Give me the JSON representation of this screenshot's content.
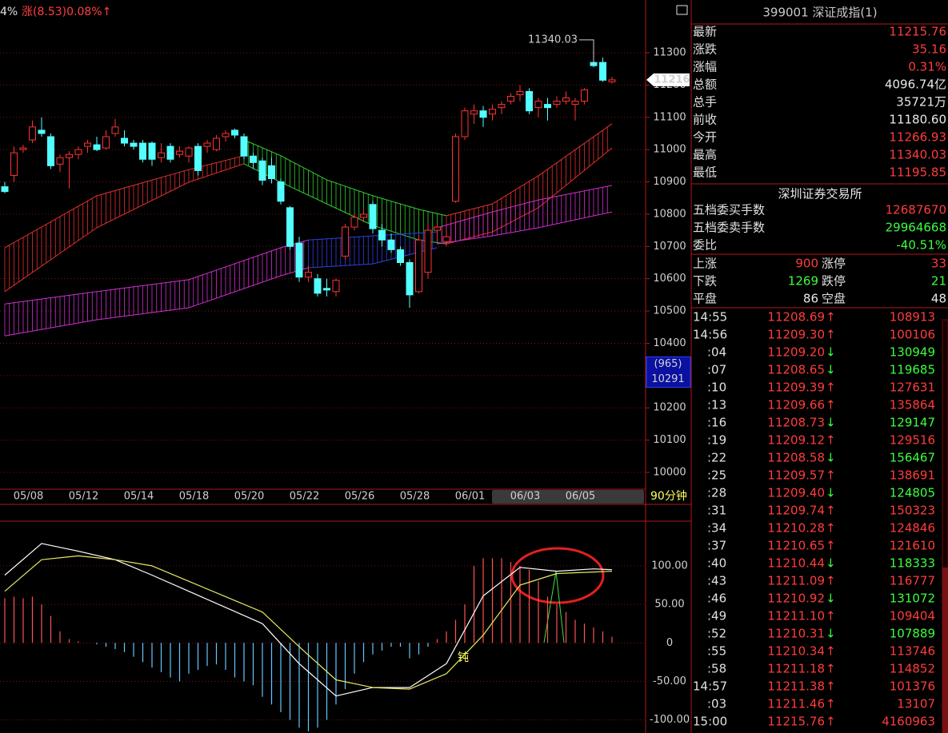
{
  "header": {
    "pct_fragment": "4%",
    "change_info": "涨(8.53)0.08%↑"
  },
  "kline": {
    "type": "candlestick",
    "ylim": [
      9948,
      11451
    ],
    "yticks": [
      10000,
      10100,
      10200,
      10300,
      10400,
      10500,
      10600,
      10700,
      10800,
      10900,
      11000,
      11100,
      11200,
      11300
    ],
    "grid": true,
    "up_color": "#ff3232",
    "down_color": "#54ffff",
    "categories": [
      null,
      null,
      null,
      "05/08",
      null,
      null,
      null,
      null,
      null,
      "05/12",
      null,
      null,
      null,
      null,
      null,
      "05/14",
      null,
      null,
      null,
      null,
      null,
      "05/18",
      null,
      null,
      null,
      null,
      null,
      "05/20",
      null,
      null,
      null,
      null,
      null,
      "05/22",
      null,
      null,
      null,
      null,
      null,
      "05/26",
      null,
      null,
      null,
      null,
      null,
      "05/28",
      null,
      null,
      null,
      null,
      null,
      "06/01",
      null,
      null,
      null,
      null,
      null,
      "06/03",
      null,
      null,
      null,
      null,
      null,
      "06/05",
      null,
      null,
      null
    ],
    "candles": [
      [
        10885,
        10900,
        10865,
        10870
      ],
      [
        10920,
        11010,
        10900,
        10990
      ],
      [
        11000,
        11015,
        10990,
        11005
      ],
      [
        11030,
        11090,
        11020,
        11070
      ],
      [
        11060,
        11100,
        11040,
        11050
      ],
      [
        11040,
        11050,
        10940,
        10950
      ],
      [
        10955,
        10985,
        10930,
        10975
      ],
      [
        10975,
        10995,
        10880,
        10985
      ],
      [
        10985,
        11010,
        10970,
        11000
      ],
      [
        11010,
        11030,
        10990,
        11020
      ],
      [
        11015,
        11040,
        10995,
        11000
      ],
      [
        11005,
        11060,
        11000,
        11040
      ],
      [
        11050,
        11095,
        11040,
        11070
      ],
      [
        11035,
        11060,
        11010,
        11020
      ],
      [
        11020,
        11030,
        11000,
        11010
      ],
      [
        11020,
        11030,
        10960,
        10970
      ],
      [
        11020,
        11025,
        10950,
        10970
      ],
      [
        10975,
        11020,
        10960,
        10990
      ],
      [
        11010,
        11020,
        10960,
        10970
      ],
      [
        10985,
        11010,
        10975,
        10995
      ],
      [
        10980,
        11010,
        10960,
        11005
      ],
      [
        11010,
        11020,
        10920,
        10935
      ],
      [
        11010,
        11030,
        10990,
        11020
      ],
      [
        11000,
        11045,
        10995,
        11035
      ],
      [
        11040,
        11060,
        11025,
        11050
      ],
      [
        11060,
        11065,
        11035,
        11045
      ],
      [
        11040,
        11050,
        10970,
        10980
      ],
      [
        10980,
        10990,
        10940,
        10960
      ],
      [
        10965,
        10975,
        10890,
        10905
      ],
      [
        10950,
        10975,
        10895,
        10910
      ],
      [
        10900,
        10910,
        10830,
        10840
      ],
      [
        10820,
        10825,
        10690,
        10700
      ],
      [
        10710,
        10730,
        10590,
        10605
      ],
      [
        10605,
        10640,
        10590,
        10620
      ],
      [
        10600,
        10615,
        10545,
        10555
      ],
      [
        10570,
        10600,
        10545,
        10565
      ],
      [
        10560,
        10600,
        10545,
        10595
      ],
      [
        10670,
        10770,
        10660,
        10760
      ],
      [
        10760,
        10800,
        10750,
        10790
      ],
      [
        10790,
        10815,
        10775,
        10800
      ],
      [
        10830,
        10840,
        10740,
        10755
      ],
      [
        10750,
        10770,
        10700,
        10720
      ],
      [
        10720,
        10740,
        10680,
        10690
      ],
      [
        10690,
        10700,
        10640,
        10650
      ],
      [
        10650,
        10660,
        10510,
        10550
      ],
      [
        10560,
        10735,
        10555,
        10720
      ],
      [
        10620,
        10770,
        10600,
        10750
      ],
      [
        10750,
        10770,
        10720,
        10760
      ],
      [
        10715,
        10750,
        10700,
        10730
      ],
      [
        10840,
        11050,
        10835,
        11040
      ],
      [
        11040,
        11130,
        11030,
        11120
      ],
      [
        11110,
        11140,
        11080,
        11120
      ],
      [
        11120,
        11135,
        11070,
        11100
      ],
      [
        11110,
        11140,
        11090,
        11125
      ],
      [
        11130,
        11150,
        11110,
        11140
      ],
      [
        11150,
        11175,
        11140,
        11165
      ],
      [
        11170,
        11200,
        11150,
        11180
      ],
      [
        11180,
        11190,
        11110,
        11120
      ],
      [
        11130,
        11160,
        11100,
        11150
      ],
      [
        11140,
        11160,
        11090,
        11130
      ],
      [
        11140,
        11165,
        11130,
        11150
      ],
      [
        11150,
        11180,
        11140,
        11160
      ],
      [
        11140,
        11160,
        11090,
        11150
      ],
      [
        11150,
        11190,
        11140,
        11185
      ],
      [
        11270,
        11340.03,
        11255,
        11260
      ],
      [
        11270,
        11285,
        11210,
        11215
      ],
      [
        11210,
        11225,
        11205,
        11216
      ]
    ],
    "bands": [
      {
        "color": "#e03030",
        "x": [
          0,
          10,
          20,
          26
        ],
        "upper": [
          10696,
          10857,
          10938,
          10981
        ],
        "lower": [
          10560,
          10758,
          10899,
          10956
        ]
      },
      {
        "color": "#30d030",
        "x": [
          26,
          30,
          35,
          40,
          45,
          48
        ],
        "upper": [
          11030,
          10981,
          10906,
          10857,
          10815,
          10795
        ],
        "lower": [
          10956,
          10899,
          10832,
          10765,
          10720,
          10708
        ]
      },
      {
        "color": "#e03030",
        "x": [
          48,
          53,
          58,
          66
        ],
        "upper": [
          10795,
          10832,
          10919,
          11080
        ],
        "lower": [
          10708,
          10745,
          10820,
          11005
        ]
      },
      {
        "color": "#d030d0",
        "x": [
          0,
          10,
          20,
          30,
          33
        ],
        "upper": [
          10522,
          10560,
          10597,
          10696,
          10720
        ],
        "lower": [
          10423,
          10473,
          10510,
          10609,
          10634
        ]
      },
      {
        "color": "#3040e0",
        "x": [
          33,
          40,
          47
        ],
        "upper": [
          10720,
          10733,
          10745
        ],
        "lower": [
          10634,
          10646,
          10696
        ]
      },
      {
        "color": "#d030d0",
        "x": [
          47,
          53,
          58,
          66
        ],
        "upper": [
          10758,
          10807,
          10844,
          10889
        ],
        "lower": [
          10708,
          10733,
          10758,
          10807
        ]
      }
    ],
    "high_label": 11340.03,
    "last_price_tag": 11216,
    "cursor_box": {
      "count": "(965)",
      "price": 10291
    },
    "period": "90分钟"
  },
  "macd": {
    "type": "macd",
    "ylim": [
      -117,
      158
    ],
    "yticks": [
      {
        "value": 100,
        "label": "100.00"
      },
      {
        "value": 50,
        "label": "50.00"
      },
      0,
      {
        "value": -50,
        "label": "-50.00"
      },
      {
        "value": -100,
        "label": "-100.00"
      }
    ],
    "up_color": "#ff5050",
    "down_color": "#60c8ff",
    "histogram": [
      58,
      60,
      58,
      60,
      50,
      35,
      15,
      5,
      2,
      0,
      -2,
      -5,
      -8,
      -12,
      -18,
      -25,
      -32,
      -38,
      -45,
      -50,
      -40,
      -35,
      -30,
      -28,
      -35,
      -45,
      -50,
      -55,
      -70,
      -80,
      -90,
      -100,
      -110,
      -115,
      -110,
      -100,
      -80,
      -60,
      -40,
      -25,
      -15,
      -10,
      -5,
      -5,
      -20,
      -15,
      -5,
      5,
      15,
      30,
      50,
      100,
      110,
      110,
      110,
      105,
      100,
      95,
      80,
      60,
      50,
      40,
      30,
      25,
      20,
      15,
      8
    ],
    "dif": {
      "color": "#ffffff",
      "x": [
        0,
        4,
        8,
        12,
        16,
        20,
        24,
        28,
        32,
        36,
        40,
        44,
        48,
        52,
        56,
        60,
        64,
        66
      ],
      "values": [
        88,
        129,
        119,
        108,
        88,
        67,
        46,
        25,
        -27,
        -69,
        -58,
        -58,
        -27,
        61,
        98,
        93,
        96,
        95
      ]
    },
    "dea": {
      "color": "#e8e860",
      "x": [
        0,
        4,
        8,
        12,
        16,
        20,
        24,
        28,
        32,
        36,
        40,
        44,
        48,
        52,
        56,
        60,
        64,
        66
      ],
      "values": [
        67,
        108,
        113,
        108,
        100,
        80,
        60,
        40,
        -5,
        -48,
        -58,
        -60,
        -40,
        10,
        75,
        90,
        92,
        93
      ]
    },
    "annotation": "钝"
  },
  "panel": {
    "title": "399001 深证成指(1)",
    "quote": [
      [
        "最新",
        "11215.76",
        "#ff3c3c"
      ],
      [
        "涨跌",
        "35.16",
        "#ff3c3c"
      ],
      [
        "涨幅",
        "0.31%",
        "#ff3c3c"
      ],
      [
        "总额",
        "4096.74亿",
        "#e8e8e8"
      ],
      [
        "总手",
        "35721万",
        "#e8e8e8"
      ],
      [
        "前收",
        "11180.60",
        "#e8e8e8"
      ],
      [
        "今开",
        "11266.93",
        "#ff3c3c"
      ],
      [
        "最高",
        "11340.03",
        "#ff3c3c"
      ],
      [
        "最低",
        "11195.85",
        "#ff3c3c"
      ]
    ],
    "exchange": "深圳证券交易所",
    "orders": [
      [
        "五档委买手数",
        "12687670",
        "#ff3c3c"
      ],
      [
        "五档委卖手数",
        "29964668",
        "#3cff3c"
      ],
      [
        "委比",
        "-40.51%",
        "#3cff3c"
      ]
    ],
    "breadth": [
      [
        "上涨",
        "900",
        "涨停",
        "33",
        "#ff3c3c"
      ],
      [
        "下跌",
        "1269",
        "跌停",
        "21",
        "#3cff3c"
      ],
      [
        "平盘",
        "86",
        "空盘",
        "48",
        "#e8e8e8"
      ]
    ],
    "ticks": [
      [
        "14:55",
        "11208.69",
        "↑",
        "108913",
        "#ff3c3c"
      ],
      [
        "14:56",
        "11209.30",
        "↑",
        "100106",
        "#ff3c3c"
      ],
      [
        ":04",
        "11209.20",
        "↓",
        "130949",
        "#3cff3c"
      ],
      [
        ":07",
        "11208.65",
        "↓",
        "119685",
        "#3cff3c"
      ],
      [
        ":10",
        "11209.39",
        "↑",
        "127631",
        "#ff3c3c"
      ],
      [
        ":13",
        "11209.66",
        "↑",
        "135864",
        "#ff3c3c"
      ],
      [
        ":16",
        "11208.73",
        "↓",
        "129147",
        "#3cff3c"
      ],
      [
        ":19",
        "11209.12",
        "↑",
        "129516",
        "#ff3c3c"
      ],
      [
        ":22",
        "11208.58",
        "↓",
        "156467",
        "#3cff3c"
      ],
      [
        ":25",
        "11209.57",
        "↑",
        "138691",
        "#ff3c3c"
      ],
      [
        ":28",
        "11209.40",
        "↓",
        "124805",
        "#3cff3c"
      ],
      [
        ":31",
        "11209.74",
        "↑",
        "150323",
        "#ff3c3c"
      ],
      [
        ":34",
        "11210.28",
        "↑",
        "124846",
        "#ff3c3c"
      ],
      [
        ":37",
        "11210.65",
        "↑",
        "121610",
        "#ff3c3c"
      ],
      [
        ":40",
        "11210.44",
        "↓",
        "118333",
        "#3cff3c"
      ],
      [
        ":43",
        "11211.09",
        "↑",
        "116777",
        "#ff3c3c"
      ],
      [
        ":46",
        "11210.92",
        "↓",
        "131072",
        "#3cff3c"
      ],
      [
        ":49",
        "11211.10",
        "↑",
        "109404",
        "#ff3c3c"
      ],
      [
        ":52",
        "11210.31",
        "↓",
        "107889",
        "#3cff3c"
      ],
      [
        ":55",
        "11210.34",
        "↑",
        "113746",
        "#ff3c3c"
      ],
      [
        ":58",
        "11211.18",
        "↑",
        "114852",
        "#ff3c3c"
      ],
      [
        "14:57",
        "11211.38",
        "↑",
        "101376",
        "#ff3c3c"
      ],
      [
        ":03",
        "11211.46",
        "↑",
        "13107",
        "#ff3c3c"
      ],
      [
        "15:00",
        "11215.76",
        "↑",
        "4160963",
        "#ff3c3c"
      ]
    ]
  }
}
